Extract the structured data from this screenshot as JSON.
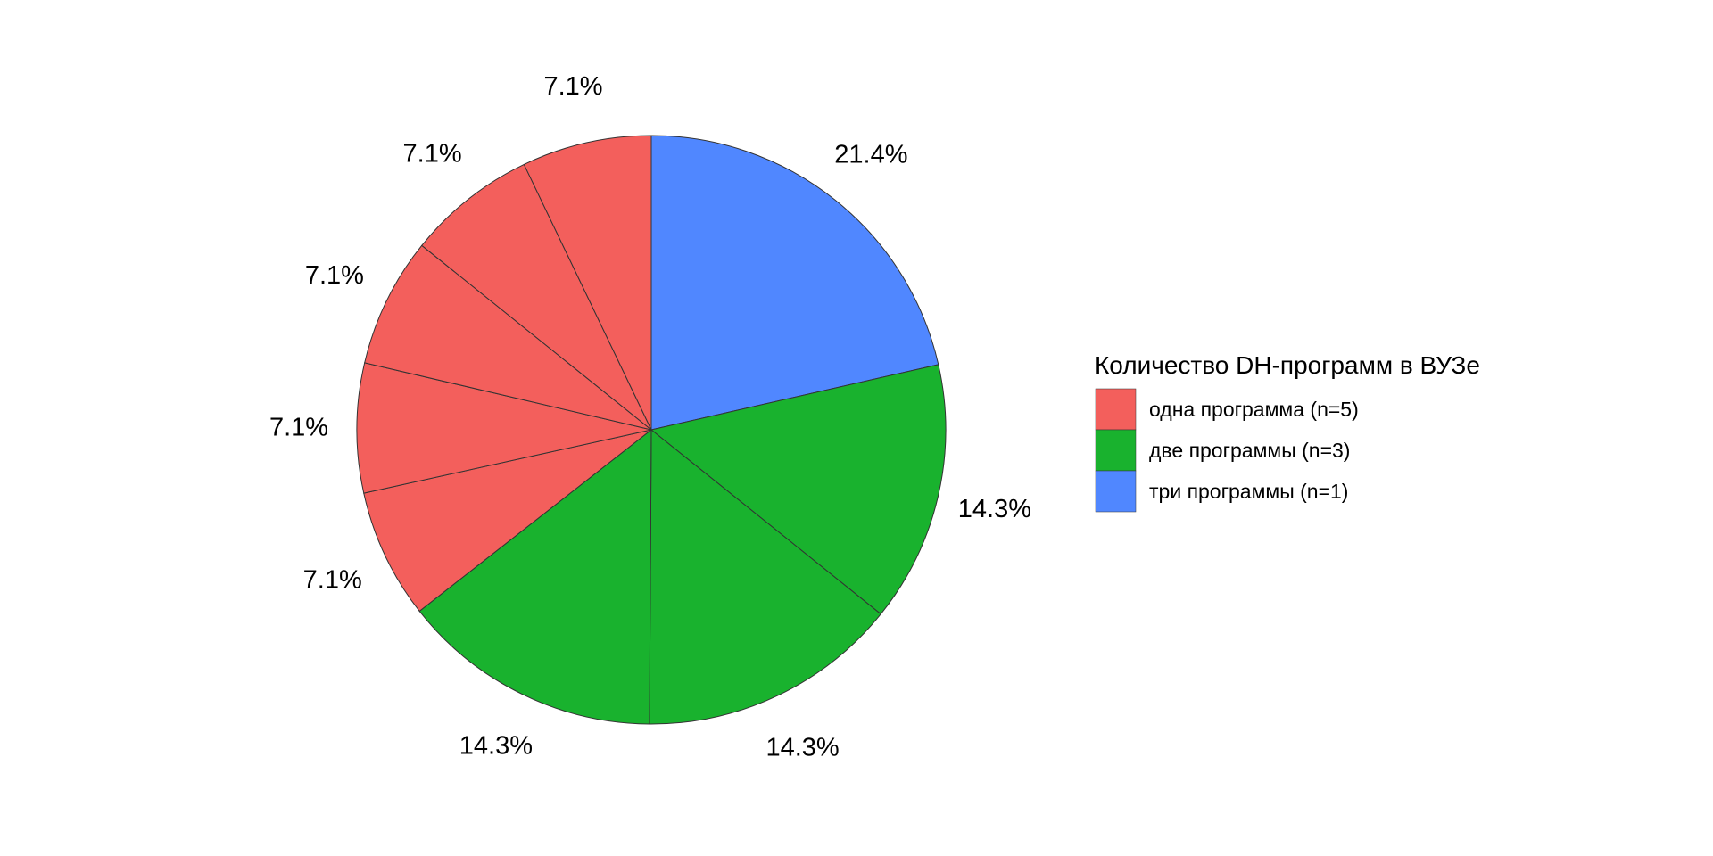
{
  "chart_data": {
    "type": "pie",
    "title": "",
    "start": "top",
    "direction": "clockwise",
    "slices": [
      {
        "value": 21.4,
        "label": "21.4%",
        "group": 2
      },
      {
        "value": 14.3,
        "label": "14.3%",
        "group": 1
      },
      {
        "value": 14.3,
        "label": "14.3%",
        "group": 1
      },
      {
        "value": 14.3,
        "label": "14.3%",
        "group": 1
      },
      {
        "value": 7.1,
        "label": "7.1%",
        "group": 0
      },
      {
        "value": 7.1,
        "label": "7.1%",
        "group": 0
      },
      {
        "value": 7.1,
        "label": "7.1%",
        "group": 0
      },
      {
        "value": 7.1,
        "label": "7.1%",
        "group": 0
      },
      {
        "value": 7.1,
        "label": "7.1%",
        "group": 0
      }
    ],
    "legend": {
      "title": "Количество DH-программ в ВУЗе",
      "position": "right",
      "entries": [
        {
          "label": "одна программа (n=5)",
          "color": "#F35F5C"
        },
        {
          "label": "две программы (n=3)",
          "color": "#19B22E"
        },
        {
          "label": "три программы (n=1)",
          "color": "#5087FF"
        }
      ]
    }
  }
}
